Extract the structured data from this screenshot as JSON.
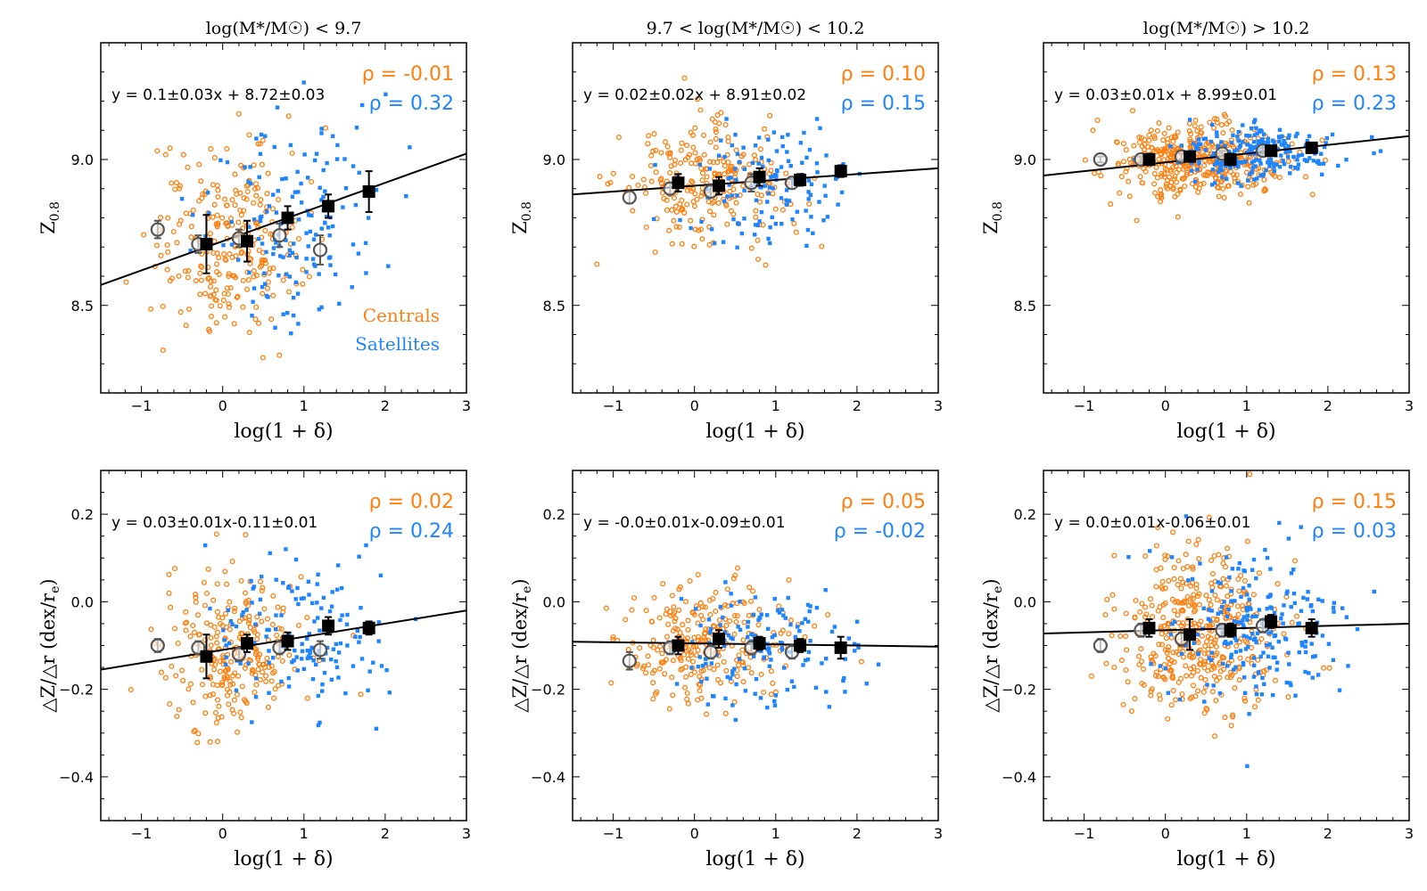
{
  "figure": {
    "xlabel": "log(1 + δ)",
    "ylabel_top": "Z",
    "ylabel_top_sub": "0.8",
    "ylabel_bottom": "△Z/△r (dex/r",
    "ylabel_bottom_sub": "e",
    "ylabel_bottom_close": ")",
    "legend_centrals": "Centrals",
    "legend_satellites": "Satellites",
    "rho_symbol": "ρ",
    "colors": {
      "centrals": "#ff7f0e",
      "satellites": "#1f85ff",
      "binned": "#000000",
      "binned_open": "#555555"
    }
  },
  "chart_data": [
    {
      "type": "scatter",
      "row": "metallicity",
      "title": "log(M*/M☉) < 9.7",
      "xlabel": "log(1 + δ)",
      "ylabel": "Z0.8",
      "xlim": [
        -1.5,
        3
      ],
      "ylim": [
        8.2,
        9.4
      ],
      "xticks": [
        -1,
        0,
        1,
        2,
        3
      ],
      "yticks": [
        8.5,
        9.0
      ],
      "ytick_labels": [
        "8.5",
        "9.0"
      ],
      "fit_label": "y = 0.1±0.03x + 8.72±0.03",
      "fit": {
        "slope": 0.1,
        "intercept": 8.72
      },
      "rho_centrals": "-0.01",
      "rho_satellites": "0.32",
      "show_legend": true,
      "binned_centrals": [
        {
          "x": -0.8,
          "y": 8.76,
          "err": 0.03
        },
        {
          "x": -0.3,
          "y": 8.71,
          "err": 0.03
        },
        {
          "x": 0.2,
          "y": 8.73,
          "err": 0.03
        },
        {
          "x": 0.7,
          "y": 8.74,
          "err": 0.04
        },
        {
          "x": 1.2,
          "y": 8.69,
          "err": 0.05
        }
      ],
      "binned_satellites": [
        {
          "x": -0.2,
          "y": 8.71,
          "err": 0.1
        },
        {
          "x": 0.3,
          "y": 8.72,
          "err": 0.07
        },
        {
          "x": 0.8,
          "y": 8.8,
          "err": 0.04
        },
        {
          "x": 1.3,
          "y": 8.84,
          "err": 0.04
        },
        {
          "x": 1.8,
          "y": 8.89,
          "err": 0.07
        }
      ],
      "scatter_centrals": {
        "n": 260,
        "x_mean": 0.05,
        "x_sd": 0.45,
        "y_mean": 8.72,
        "y_sd": 0.16
      },
      "scatter_satellites": {
        "n": 150,
        "x_mean": 0.9,
        "x_sd": 0.55,
        "y_mean": 8.8,
        "y_sd": 0.18
      }
    },
    {
      "type": "scatter",
      "row": "metallicity",
      "title": "9.7 < log(M*/M☉) < 10.2",
      "xlabel": "log(1 + δ)",
      "ylabel": "Z0.8",
      "xlim": [
        -1.5,
        3
      ],
      "ylim": [
        8.2,
        9.4
      ],
      "xticks": [
        -1,
        0,
        1,
        2,
        3
      ],
      "yticks": [
        8.5,
        9.0
      ],
      "ytick_labels": [
        "8.5",
        "9.0"
      ],
      "fit_label": "y = 0.02±0.02x + 8.91±0.02",
      "fit": {
        "slope": 0.02,
        "intercept": 8.91
      },
      "rho_centrals": "0.10",
      "rho_satellites": "0.15",
      "show_legend": false,
      "binned_centrals": [
        {
          "x": -0.8,
          "y": 8.87,
          "err": 0.02
        },
        {
          "x": -0.3,
          "y": 8.9,
          "err": 0.02
        },
        {
          "x": 0.2,
          "y": 8.89,
          "err": 0.02
        },
        {
          "x": 0.7,
          "y": 8.92,
          "err": 0.03
        },
        {
          "x": 1.2,
          "y": 8.92,
          "err": 0.02
        }
      ],
      "binned_satellites": [
        {
          "x": -0.2,
          "y": 8.92,
          "err": 0.03
        },
        {
          "x": 0.3,
          "y": 8.91,
          "err": 0.03
        },
        {
          "x": 0.8,
          "y": 8.94,
          "err": 0.03
        },
        {
          "x": 1.3,
          "y": 8.93,
          "err": 0.02
        },
        {
          "x": 1.8,
          "y": 8.96,
          "err": 0.02
        }
      ],
      "scatter_centrals": {
        "n": 250,
        "x_mean": 0.1,
        "x_sd": 0.5,
        "y_mean": 8.91,
        "y_sd": 0.1
      },
      "scatter_satellites": {
        "n": 130,
        "x_mean": 0.9,
        "x_sd": 0.5,
        "y_mean": 8.92,
        "y_sd": 0.1
      }
    },
    {
      "type": "scatter",
      "row": "metallicity",
      "title": "log(M*/M☉) > 10.2",
      "xlabel": "log(1 + δ)",
      "ylabel": "Z0.8",
      "xlim": [
        -1.5,
        3
      ],
      "ylim": [
        8.2,
        9.4
      ],
      "xticks": [
        -1,
        0,
        1,
        2,
        3
      ],
      "yticks": [
        8.5,
        9.0
      ],
      "ytick_labels": [
        "8.5",
        "9.0"
      ],
      "fit_label": "y = 0.03±0.01x + 8.99±0.01",
      "fit": {
        "slope": 0.03,
        "intercept": 8.99
      },
      "rho_centrals": "0.13",
      "rho_satellites": "0.23",
      "show_legend": false,
      "binned_centrals": [
        {
          "x": -0.8,
          "y": 9.0,
          "err": 0.01
        },
        {
          "x": -0.3,
          "y": 9.0,
          "err": 0.01
        },
        {
          "x": 0.2,
          "y": 9.01,
          "err": 0.01
        },
        {
          "x": 0.7,
          "y": 9.02,
          "err": 0.01
        },
        {
          "x": 1.2,
          "y": 9.03,
          "err": 0.01
        }
      ],
      "binned_satellites": [
        {
          "x": -0.2,
          "y": 9.0,
          "err": 0.02
        },
        {
          "x": 0.3,
          "y": 9.01,
          "err": 0.01
        },
        {
          "x": 0.8,
          "y": 9.0,
          "err": 0.02
        },
        {
          "x": 1.3,
          "y": 9.03,
          "err": 0.01
        },
        {
          "x": 1.8,
          "y": 9.04,
          "err": 0.01
        }
      ],
      "scatter_centrals": {
        "n": 420,
        "x_mean": 0.4,
        "x_sd": 0.5,
        "y_mean": 9.0,
        "y_sd": 0.06
      },
      "scatter_satellites": {
        "n": 220,
        "x_mean": 1.1,
        "x_sd": 0.5,
        "y_mean": 9.02,
        "y_sd": 0.05
      }
    },
    {
      "type": "scatter",
      "row": "gradient",
      "title": "",
      "xlabel": "log(1 + δ)",
      "ylabel": "ΔZ/Δr (dex/re)",
      "xlim": [
        -1.5,
        3
      ],
      "ylim": [
        -0.5,
        0.3
      ],
      "xticks": [
        -1,
        0,
        1,
        2,
        3
      ],
      "yticks": [
        -0.4,
        -0.2,
        0.0,
        0.2
      ],
      "ytick_labels": [
        "−0.4",
        "−0.2",
        "0.0",
        "0.2"
      ],
      "fit_label": "y = 0.03±0.01x-0.11±0.01",
      "fit": {
        "slope": 0.03,
        "intercept": -0.11
      },
      "rho_centrals": "0.02",
      "rho_satellites": "0.24",
      "show_legend": false,
      "binned_centrals": [
        {
          "x": -0.8,
          "y": -0.1,
          "err": 0.015
        },
        {
          "x": -0.3,
          "y": -0.105,
          "err": 0.015
        },
        {
          "x": 0.2,
          "y": -0.12,
          "err": 0.015
        },
        {
          "x": 0.7,
          "y": -0.105,
          "err": 0.015
        },
        {
          "x": 1.2,
          "y": -0.11,
          "err": 0.02
        }
      ],
      "binned_satellites": [
        {
          "x": -0.2,
          "y": -0.125,
          "err": 0.05
        },
        {
          "x": 0.3,
          "y": -0.095,
          "err": 0.02
        },
        {
          "x": 0.8,
          "y": -0.09,
          "err": 0.02
        },
        {
          "x": 1.3,
          "y": -0.055,
          "err": 0.02
        },
        {
          "x": 1.8,
          "y": -0.06,
          "err": 0.015
        }
      ],
      "scatter_centrals": {
        "n": 260,
        "x_mean": 0.1,
        "x_sd": 0.45,
        "y_mean": -0.11,
        "y_sd": 0.09
      },
      "scatter_satellites": {
        "n": 150,
        "x_mean": 1.0,
        "x_sd": 0.55,
        "y_mean": -0.08,
        "y_sd": 0.09
      }
    },
    {
      "type": "scatter",
      "row": "gradient",
      "title": "",
      "xlabel": "log(1 + δ)",
      "ylabel": "ΔZ/Δr (dex/re)",
      "xlim": [
        -1.5,
        3
      ],
      "ylim": [
        -0.5,
        0.3
      ],
      "xticks": [
        -1,
        0,
        1,
        2,
        3
      ],
      "yticks": [
        -0.4,
        -0.2,
        0.0,
        0.2
      ],
      "ytick_labels": [
        "−0.4",
        "−0.2",
        "0.0",
        "0.2"
      ],
      "fit_label": "y = -0.0±0.01x-0.09±0.01",
      "fit": {
        "slope": -0.0025,
        "intercept": -0.095
      },
      "rho_centrals": "0.05",
      "rho_satellites": "-0.02",
      "show_legend": false,
      "binned_centrals": [
        {
          "x": -0.8,
          "y": -0.135,
          "err": 0.02
        },
        {
          "x": -0.3,
          "y": -0.105,
          "err": 0.015
        },
        {
          "x": 0.2,
          "y": -0.115,
          "err": 0.015
        },
        {
          "x": 0.7,
          "y": -0.105,
          "err": 0.015
        },
        {
          "x": 1.2,
          "y": -0.115,
          "err": 0.015
        }
      ],
      "binned_satellites": [
        {
          "x": -0.2,
          "y": -0.1,
          "err": 0.02
        },
        {
          "x": 0.3,
          "y": -0.085,
          "err": 0.02
        },
        {
          "x": 0.8,
          "y": -0.095,
          "err": 0.015
        },
        {
          "x": 1.3,
          "y": -0.1,
          "err": 0.015
        },
        {
          "x": 1.8,
          "y": -0.105,
          "err": 0.025
        }
      ],
      "scatter_centrals": {
        "n": 260,
        "x_mean": 0.1,
        "x_sd": 0.5,
        "y_mean": -0.1,
        "y_sd": 0.07
      },
      "scatter_satellites": {
        "n": 140,
        "x_mean": 0.9,
        "x_sd": 0.5,
        "y_mean": -0.1,
        "y_sd": 0.07
      }
    },
    {
      "type": "scatter",
      "row": "gradient",
      "title": "",
      "xlabel": "log(1 + δ)",
      "ylabel": "ΔZ/Δr (dex/re)",
      "xlim": [
        -1.5,
        3
      ],
      "ylim": [
        -0.5,
        0.3
      ],
      "xticks": [
        -1,
        0,
        1,
        2,
        3
      ],
      "yticks": [
        -0.4,
        -0.2,
        0.0,
        0.2
      ],
      "ytick_labels": [
        "−0.4",
        "−0.2",
        "0.0",
        "0.2"
      ],
      "fit_label": "y = 0.0±0.01x-0.06±0.01",
      "fit": {
        "slope": 0.005,
        "intercept": -0.065
      },
      "rho_centrals": "0.15",
      "rho_satellites": "0.03",
      "show_legend": false,
      "binned_centrals": [
        {
          "x": -0.8,
          "y": -0.1,
          "err": 0.015
        },
        {
          "x": -0.3,
          "y": -0.065,
          "err": 0.015
        },
        {
          "x": 0.2,
          "y": -0.085,
          "err": 0.015
        },
        {
          "x": 0.7,
          "y": -0.065,
          "err": 0.015
        },
        {
          "x": 1.2,
          "y": -0.055,
          "err": 0.015
        }
      ],
      "binned_satellites": [
        {
          "x": -0.2,
          "y": -0.06,
          "err": 0.02
        },
        {
          "x": 0.3,
          "y": -0.075,
          "err": 0.035
        },
        {
          "x": 0.8,
          "y": -0.065,
          "err": 0.015
        },
        {
          "x": 1.3,
          "y": -0.045,
          "err": 0.015
        },
        {
          "x": 1.8,
          "y": -0.06,
          "err": 0.02
        }
      ],
      "scatter_centrals": {
        "n": 420,
        "x_mean": 0.4,
        "x_sd": 0.5,
        "y_mean": -0.07,
        "y_sd": 0.09
      },
      "scatter_satellites": {
        "n": 220,
        "x_mean": 1.1,
        "x_sd": 0.5,
        "y_mean": -0.06,
        "y_sd": 0.09
      }
    }
  ]
}
